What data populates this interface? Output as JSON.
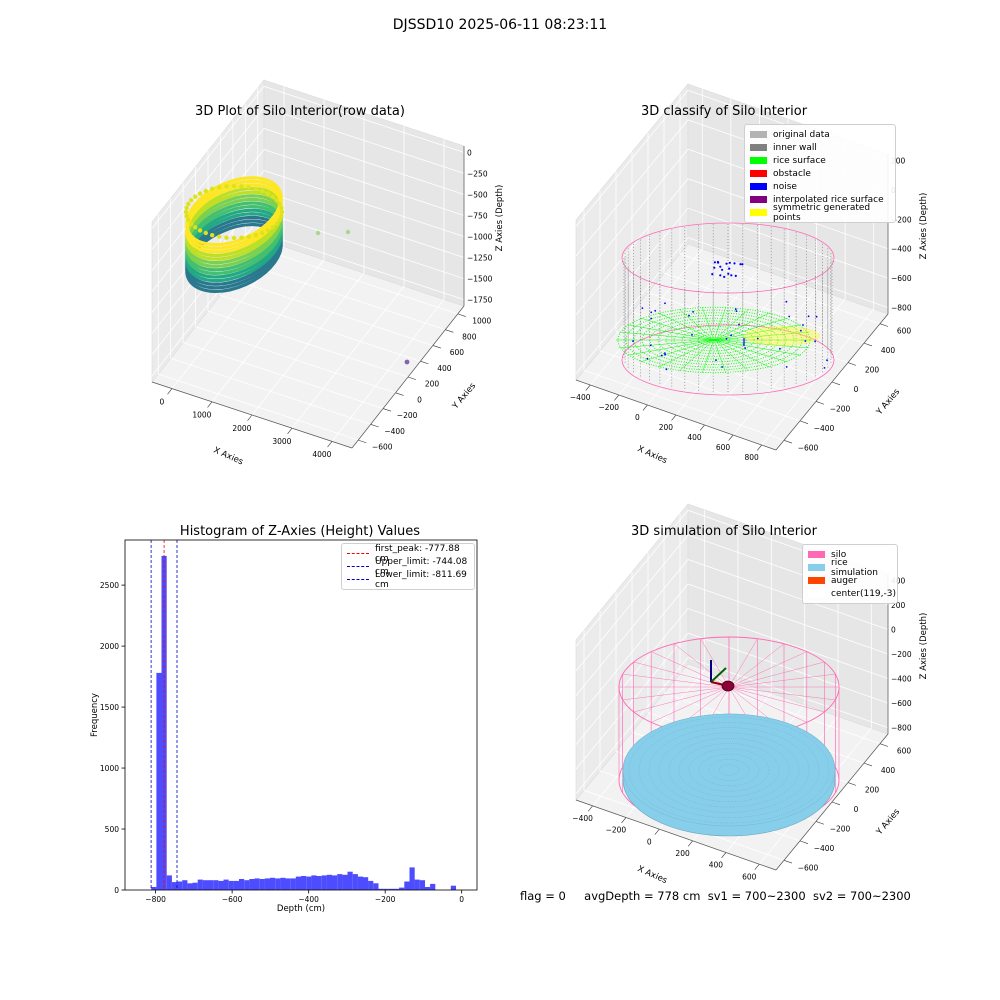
{
  "figure_title": "DJSSD10 2025-06-11 08:23:11",
  "footer": {
    "flag": "flag = 0",
    "avg_depth": "avgDepth = 778 cm",
    "sv1": "sv1 = 700~2300",
    "sv2": "sv2 = 700~2300"
  },
  "colors": {
    "original": "#b3b3b3",
    "inner_wall": "#808080",
    "rice_surface": "#00ff00",
    "obstacle": "#ff0000",
    "noise": "#0000ff",
    "interp": "#800080",
    "symmetric": "#ffff00",
    "silo": "#ff69b4",
    "rice_sim": "#87ceeb",
    "auger": "#ff4500",
    "hist_bar": "#4d4dff"
  },
  "chart_data": [
    {
      "type": "scatter",
      "title": "3D Plot of Silo Interior(row data)",
      "xlabel": "X Axies",
      "ylabel": "Y Axies",
      "zlabel": "Z Axies (Depth)",
      "xticks": [
        "0",
        "1000",
        "2000",
        "3000",
        "4000"
      ],
      "yticks": [
        "−600",
        "−400",
        "−200",
        "0",
        "200",
        "400",
        "600",
        "800",
        "1000"
      ],
      "zticks": [
        "0",
        "−250",
        "−500",
        "−750",
        "−1000",
        "−1250",
        "−1500",
        "−1750"
      ],
      "colormap": "viridis"
    },
    {
      "type": "scatter",
      "title": "3D classify of Silo Interior",
      "xlabel": "X Axies",
      "ylabel": "Y Axies",
      "zlabel": "Z Axies (Depth)",
      "xticks": [
        "−400",
        "−200",
        "0",
        "200",
        "400",
        "600",
        "800"
      ],
      "yticks": [
        "−600",
        "−400",
        "−200",
        "0",
        "200",
        "400",
        "600"
      ],
      "zticks": [
        "200",
        "0",
        "−200",
        "−400",
        "−600",
        "−800"
      ],
      "legend": [
        "original data",
        "inner wall",
        "rice surface",
        "obstacle",
        "noise",
        "interpolated rice surface",
        "symmetric generated points"
      ],
      "legend_loc": "upper right"
    },
    {
      "type": "bar",
      "title": "Histogram of Z-Axies (Height) Values",
      "xlabel": "Depth (cm)",
      "ylabel": "Frequency",
      "xlim": [
        -880,
        40
      ],
      "ylim": [
        0,
        2870
      ],
      "xticks": [
        -800,
        -600,
        -400,
        -200,
        0
      ],
      "xtick_labels": [
        "−800",
        "−600",
        "−400",
        "−200",
        "0"
      ],
      "yticks": [
        0,
        500,
        1000,
        1500,
        2000,
        2500
      ],
      "yticks_labels": [
        "0",
        "500",
        "1000",
        "1500",
        "2000",
        "2500"
      ],
      "bin_width": 13.5,
      "bins": [
        {
          "x0": -811.5,
          "v": 25
        },
        {
          "x0": -798,
          "v": 1780
        },
        {
          "x0": -784.5,
          "v": 2740
        },
        {
          "x0": -771,
          "v": 120
        },
        {
          "x0": -757.5,
          "v": 65
        },
        {
          "x0": -744,
          "v": 70
        },
        {
          "x0": -730.5,
          "v": 80
        },
        {
          "x0": -717,
          "v": 55
        },
        {
          "x0": -703.5,
          "v": 60
        },
        {
          "x0": -690,
          "v": 85
        },
        {
          "x0": -676.5,
          "v": 80
        },
        {
          "x0": -663,
          "v": 80
        },
        {
          "x0": -649.5,
          "v": 80
        },
        {
          "x0": -636,
          "v": 75
        },
        {
          "x0": -622.5,
          "v": 85
        },
        {
          "x0": -609,
          "v": 75
        },
        {
          "x0": -595.5,
          "v": 75
        },
        {
          "x0": -582,
          "v": 90
        },
        {
          "x0": -568.5,
          "v": 80
        },
        {
          "x0": -555,
          "v": 90
        },
        {
          "x0": -541.5,
          "v": 95
        },
        {
          "x0": -528,
          "v": 90
        },
        {
          "x0": -514.5,
          "v": 95
        },
        {
          "x0": -501,
          "v": 100
        },
        {
          "x0": -487.5,
          "v": 95
        },
        {
          "x0": -474,
          "v": 100
        },
        {
          "x0": -460.5,
          "v": 95
        },
        {
          "x0": -447,
          "v": 95
        },
        {
          "x0": -433.5,
          "v": 110
        },
        {
          "x0": -420,
          "v": 115
        },
        {
          "x0": -406.5,
          "v": 110
        },
        {
          "x0": -393,
          "v": 120
        },
        {
          "x0": -379.5,
          "v": 115
        },
        {
          "x0": -366,
          "v": 120
        },
        {
          "x0": -352.5,
          "v": 125
        },
        {
          "x0": -339,
          "v": 120
        },
        {
          "x0": -325.5,
          "v": 130
        },
        {
          "x0": -312,
          "v": 125
        },
        {
          "x0": -298.5,
          "v": 150
        },
        {
          "x0": -285,
          "v": 130
        },
        {
          "x0": -271.5,
          "v": 110
        },
        {
          "x0": -258,
          "v": 105
        },
        {
          "x0": -244.5,
          "v": 75
        },
        {
          "x0": -231,
          "v": 55
        },
        {
          "x0": -217.5,
          "v": 10
        },
        {
          "x0": -204,
          "v": 10
        },
        {
          "x0": -190.5,
          "v": 10
        },
        {
          "x0": -177,
          "v": 10
        },
        {
          "x0": -163.5,
          "v": 20
        },
        {
          "x0": -150,
          "v": 70
        },
        {
          "x0": -136.5,
          "v": 185
        },
        {
          "x0": -123,
          "v": 85
        },
        {
          "x0": -109.5,
          "v": 80
        },
        {
          "x0": -96,
          "v": 25
        },
        {
          "x0": -82.5,
          "v": 50
        },
        {
          "x0": -69,
          "v": 0
        },
        {
          "x0": -55.5,
          "v": 0
        },
        {
          "x0": -42,
          "v": 0
        },
        {
          "x0": -28.5,
          "v": 35
        }
      ],
      "vlines": [
        {
          "label": "first_peak: -777.88 cm",
          "x": -777.88,
          "color": "#ff0000"
        },
        {
          "label": "Upper_limit: -744.08 cm",
          "x": -744.08,
          "color": "#0000cc"
        },
        {
          "label": "Lower_limit: -811.69 cm",
          "x": -811.69,
          "color": "#0000cc"
        }
      ],
      "legend_loc": "upper right"
    },
    {
      "type": "scatter",
      "title": "3D simulation of Silo Interior",
      "xlabel": "X Axies",
      "ylabel": "Y Axies",
      "zlabel": "Z Axies (Depth)",
      "xticks": [
        "−400",
        "−200",
        "0",
        "200",
        "400",
        "600"
      ],
      "yticks": [
        "−600",
        "−400",
        "−200",
        "0",
        "200",
        "400",
        "600"
      ],
      "zticks": [
        "400",
        "200",
        "0",
        "−200",
        "−400",
        "−600",
        "−800"
      ],
      "legend": [
        "silo",
        "rice simulation",
        "auger",
        "center(119,-3)"
      ],
      "legend_loc": "upper right"
    }
  ]
}
